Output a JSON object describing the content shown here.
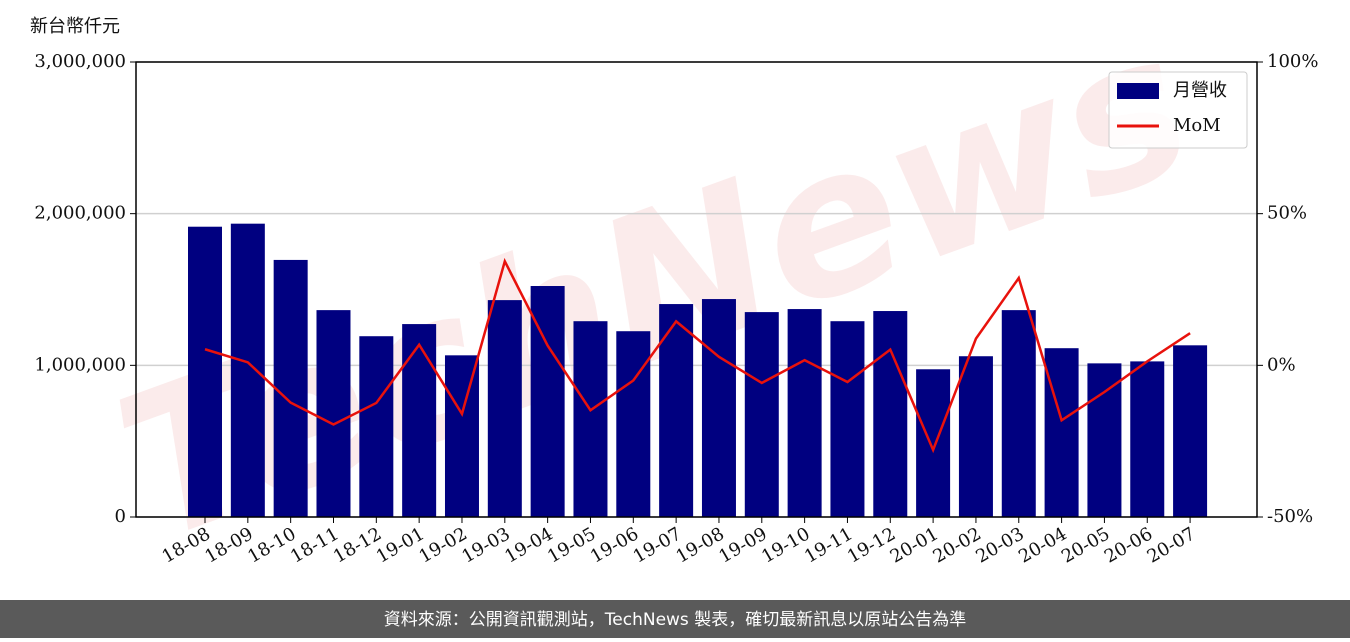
{
  "chart_data": {
    "type": "bar",
    "ylabel": "新台幣仟元",
    "watermark": "TechNews",
    "source": "資料來源：公開資訊觀測站，TechNews 製表，確切最新訊息以原站公告為準",
    "categories": [
      "18-08",
      "18-09",
      "18-10",
      "18-11",
      "18-12",
      "19-01",
      "19-02",
      "19-03",
      "19-04",
      "19-05",
      "19-06",
      "19-07",
      "19-08",
      "19-09",
      "19-10",
      "19-11",
      "19-12",
      "20-01",
      "20-02",
      "20-03",
      "20-04",
      "20-05",
      "20-06",
      "20-07"
    ],
    "series": [
      {
        "name": "月營收",
        "type": "bar",
        "color": "#000080",
        "values": [
          1914000,
          1934000,
          1695000,
          1364000,
          1192000,
          1272000,
          1066000,
          1430000,
          1523000,
          1291000,
          1225000,
          1404000,
          1437000,
          1351000,
          1371000,
          1291000,
          1358000,
          974000,
          1060000,
          1364000,
          1113000,
          1013000,
          1026000,
          1132000
        ]
      },
      {
        "name": "MoM",
        "type": "line",
        "color": "#e8120c",
        "axis": "y2",
        "values": [
          5.3,
          1.0,
          -12.3,
          -19.5,
          -12.4,
          6.8,
          -16.0,
          34.3,
          6.5,
          -14.8,
          -5.0,
          14.5,
          2.8,
          -5.8,
          1.7,
          -5.5,
          5.2,
          -27.9,
          8.8,
          28.8,
          -18.1,
          -8.8,
          1.3,
          10.6
        ]
      }
    ],
    "ylim": [
      0,
      3000000
    ],
    "yticks": [
      0,
      {
        "value": 1000000,
        "label": "1,000,000"
      },
      {
        "value": 2000000,
        "label": "2,000,000"
      },
      {
        "value": 3000000,
        "label": "3,000,000"
      }
    ],
    "y2lim": [
      -50,
      100
    ],
    "y2ticks": [
      {
        "value": -50,
        "label": "-50%"
      },
      {
        "value": 0,
        "label": "0%"
      },
      {
        "value": 50,
        "label": "50%"
      },
      {
        "value": 100,
        "label": "100%"
      }
    ],
    "grid": true,
    "legend": "upper right"
  }
}
